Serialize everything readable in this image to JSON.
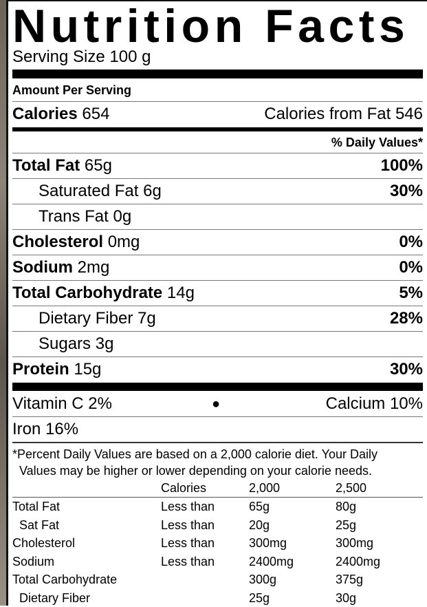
{
  "title": "Nutrition Facts",
  "serving_size": "Serving Size 100 g",
  "amount_per_serving": "Amount Per Serving",
  "calories": {
    "label": "Calories",
    "value": "654",
    "from_fat": "Calories from Fat 546"
  },
  "daily_values_header": "% Daily Values*",
  "nutrients": [
    {
      "name": "Total Fat",
      "amount": "65g",
      "dv": "100%",
      "bold": true
    },
    {
      "name": "Saturated Fat",
      "amount": "6g",
      "dv": "30%",
      "bold": false
    },
    {
      "name": "Trans Fat",
      "amount": "0g",
      "dv": "",
      "bold": false
    },
    {
      "name": "Cholesterol",
      "amount": "0mg",
      "dv": "0%",
      "bold": true
    },
    {
      "name": "Sodium",
      "amount": "2mg",
      "dv": "0%",
      "bold": true
    },
    {
      "name": "Total Carbohydrate",
      "amount": "14g",
      "dv": "5%",
      "bold": true
    },
    {
      "name": "Dietary Fiber",
      "amount": "7g",
      "dv": "28%",
      "bold": false
    },
    {
      "name": "Sugars",
      "amount": "3g",
      "dv": "",
      "bold": false
    },
    {
      "name": "Protein",
      "amount": "15g",
      "dv": "30%",
      "bold": true
    }
  ],
  "vitamins": {
    "vitamin_c": "Vitamin C 2%",
    "separator": "●",
    "calcium": "Calcium 10%",
    "iron": "Iron 16%"
  },
  "footnote": [
    "*Percent Daily Values are based on a 2,000 calorie diet. Your Daily",
    "Values may be higher or lower depending on your calorie needs."
  ],
  "reference_table": {
    "header": [
      "",
      "Calories",
      "2,000",
      "2,500"
    ],
    "rows": [
      [
        "Total Fat",
        "Less than",
        "65g",
        "80g"
      ],
      [
        "Sat Fat",
        "Less than",
        "20g",
        "25g"
      ],
      [
        "Cholesterol",
        "Less than",
        "300mg",
        "300mg"
      ],
      [
        "Sodium",
        "Less than",
        "2400mg",
        "2400mg"
      ],
      [
        "Total Carbohydrate",
        "",
        "300g",
        "375g"
      ],
      [
        "Dietary Fiber",
        "",
        "25g",
        "30g"
      ]
    ]
  }
}
